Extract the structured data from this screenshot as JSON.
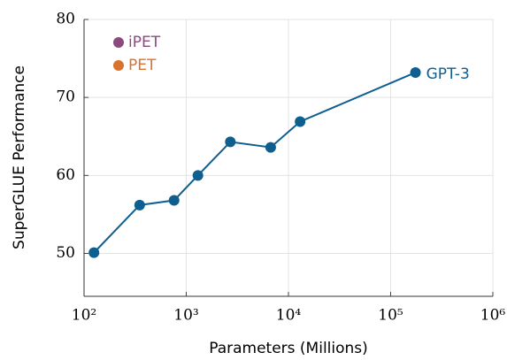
{
  "chart_data": {
    "type": "line",
    "x_label": "Parameters (Millions)",
    "y_label": "SuperGLUE Performance",
    "x_scale": "log",
    "xlim": [
      100,
      1000000
    ],
    "xticks": [
      {
        "value": 100,
        "label": "10²"
      },
      {
        "value": 1000,
        "label": "10³"
      },
      {
        "value": 10000,
        "label": "10⁴"
      },
      {
        "value": 100000,
        "label": "10⁵"
      },
      {
        "value": 1000000,
        "label": "10⁶"
      }
    ],
    "ylim": [
      44.5,
      80
    ],
    "yticks": [
      50,
      60,
      70,
      80
    ],
    "grid": true,
    "legend": "upper left",
    "series": [
      {
        "name": "iPET",
        "color": "#8b4a7e",
        "x": [],
        "values": []
      },
      {
        "name": "PET",
        "color": "#d9722e",
        "x": [],
        "values": []
      },
      {
        "name": "GPT-3",
        "color": "#0e5f8f",
        "x": [
          125,
          350,
          760,
          1300,
          2700,
          6700,
          13000,
          175000
        ],
        "values": [
          50.1,
          56.2,
          56.8,
          60.0,
          64.3,
          63.6,
          66.9,
          73.2
        ]
      }
    ]
  }
}
